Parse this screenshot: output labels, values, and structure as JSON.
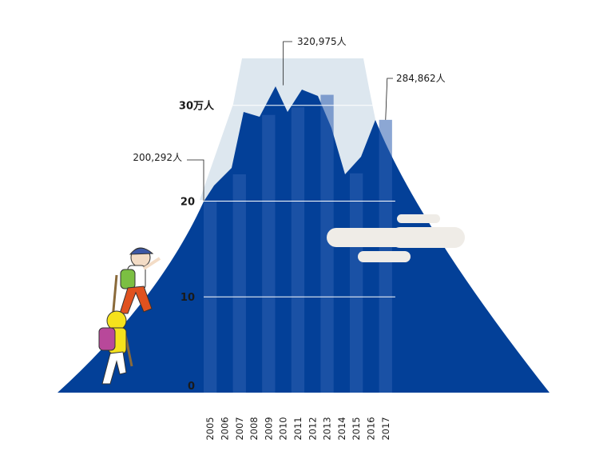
{
  "chart_data": {
    "type": "bar",
    "categories": [
      "2005",
      "2006",
      "2007",
      "2008",
      "2009",
      "2010",
      "2011",
      "2012",
      "2013",
      "2014",
      "2015",
      "2016",
      "2017"
    ],
    "values": [
      200292,
      218000,
      228000,
      295000,
      290000,
      320975,
      298000,
      318000,
      311000,
      276000,
      229000,
      245000,
      284862
    ],
    "ylim": [
      0,
      320975
    ],
    "y_ticks": [
      {
        "value": 0,
        "label": "0"
      },
      {
        "value": 100000,
        "label": "10"
      },
      {
        "value": 200000,
        "label": "20"
      },
      {
        "value": 300000,
        "label": "30万人"
      }
    ],
    "annotations": [
      {
        "index": 0,
        "text": "200,292人"
      },
      {
        "index": 5,
        "text": "320,975人"
      },
      {
        "index": 12,
        "text": "284,862人"
      }
    ],
    "colors": {
      "mountain": "#034098",
      "bar": "#2e5fb0",
      "snow": "#dde7ef",
      "cloud": "#efece7",
      "gridline": "#ffffff"
    }
  }
}
